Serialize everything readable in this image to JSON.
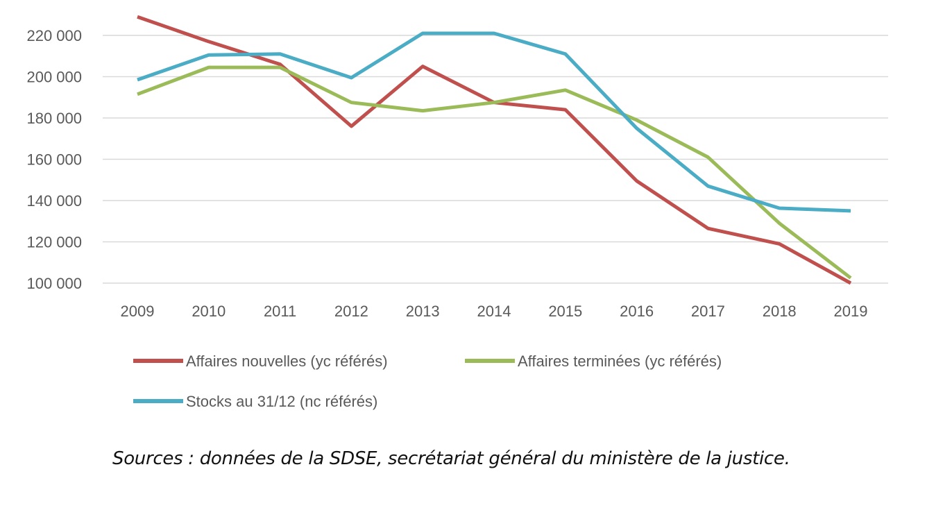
{
  "chart_data": {
    "type": "line",
    "title": "",
    "xlabel": "",
    "ylabel": "",
    "x": [
      2009,
      2010,
      2011,
      2012,
      2013,
      2014,
      2015,
      2016,
      2017,
      2018,
      2019
    ],
    "ylim": [
      100000,
      220000
    ],
    "yticks": [
      100000,
      120000,
      140000,
      160000,
      180000,
      200000,
      220000
    ],
    "ytick_labels": [
      "100 000",
      "120 000",
      "140 000",
      "160 000",
      "180 000",
      "200 000",
      "220 000"
    ],
    "grid": "horizontal",
    "legend_placement": "bottom",
    "series": [
      {
        "name": "Affaires nouvelles (yc référés)",
        "color": "#C0504D",
        "values": [
          229000,
          217000,
          206000,
          176000,
          205000,
          187500,
          184000,
          149500,
          126500,
          119000,
          100000
        ]
      },
      {
        "name": "Affaires terminées (yc référés)",
        "color": "#9BBB59",
        "values": [
          191500,
          204500,
          204500,
          187500,
          183500,
          187500,
          193500,
          179000,
          161000,
          129000,
          102500
        ]
      },
      {
        "name": "Stocks au 31/12 (nc référés)",
        "color": "#4BACC6",
        "values": [
          198500,
          210500,
          211000,
          199500,
          221000,
          221000,
          211000,
          175000,
          147000,
          136300,
          135000
        ]
      }
    ]
  },
  "source": "Sources : données de la SDSE, secrétariat général du ministère de la justice."
}
